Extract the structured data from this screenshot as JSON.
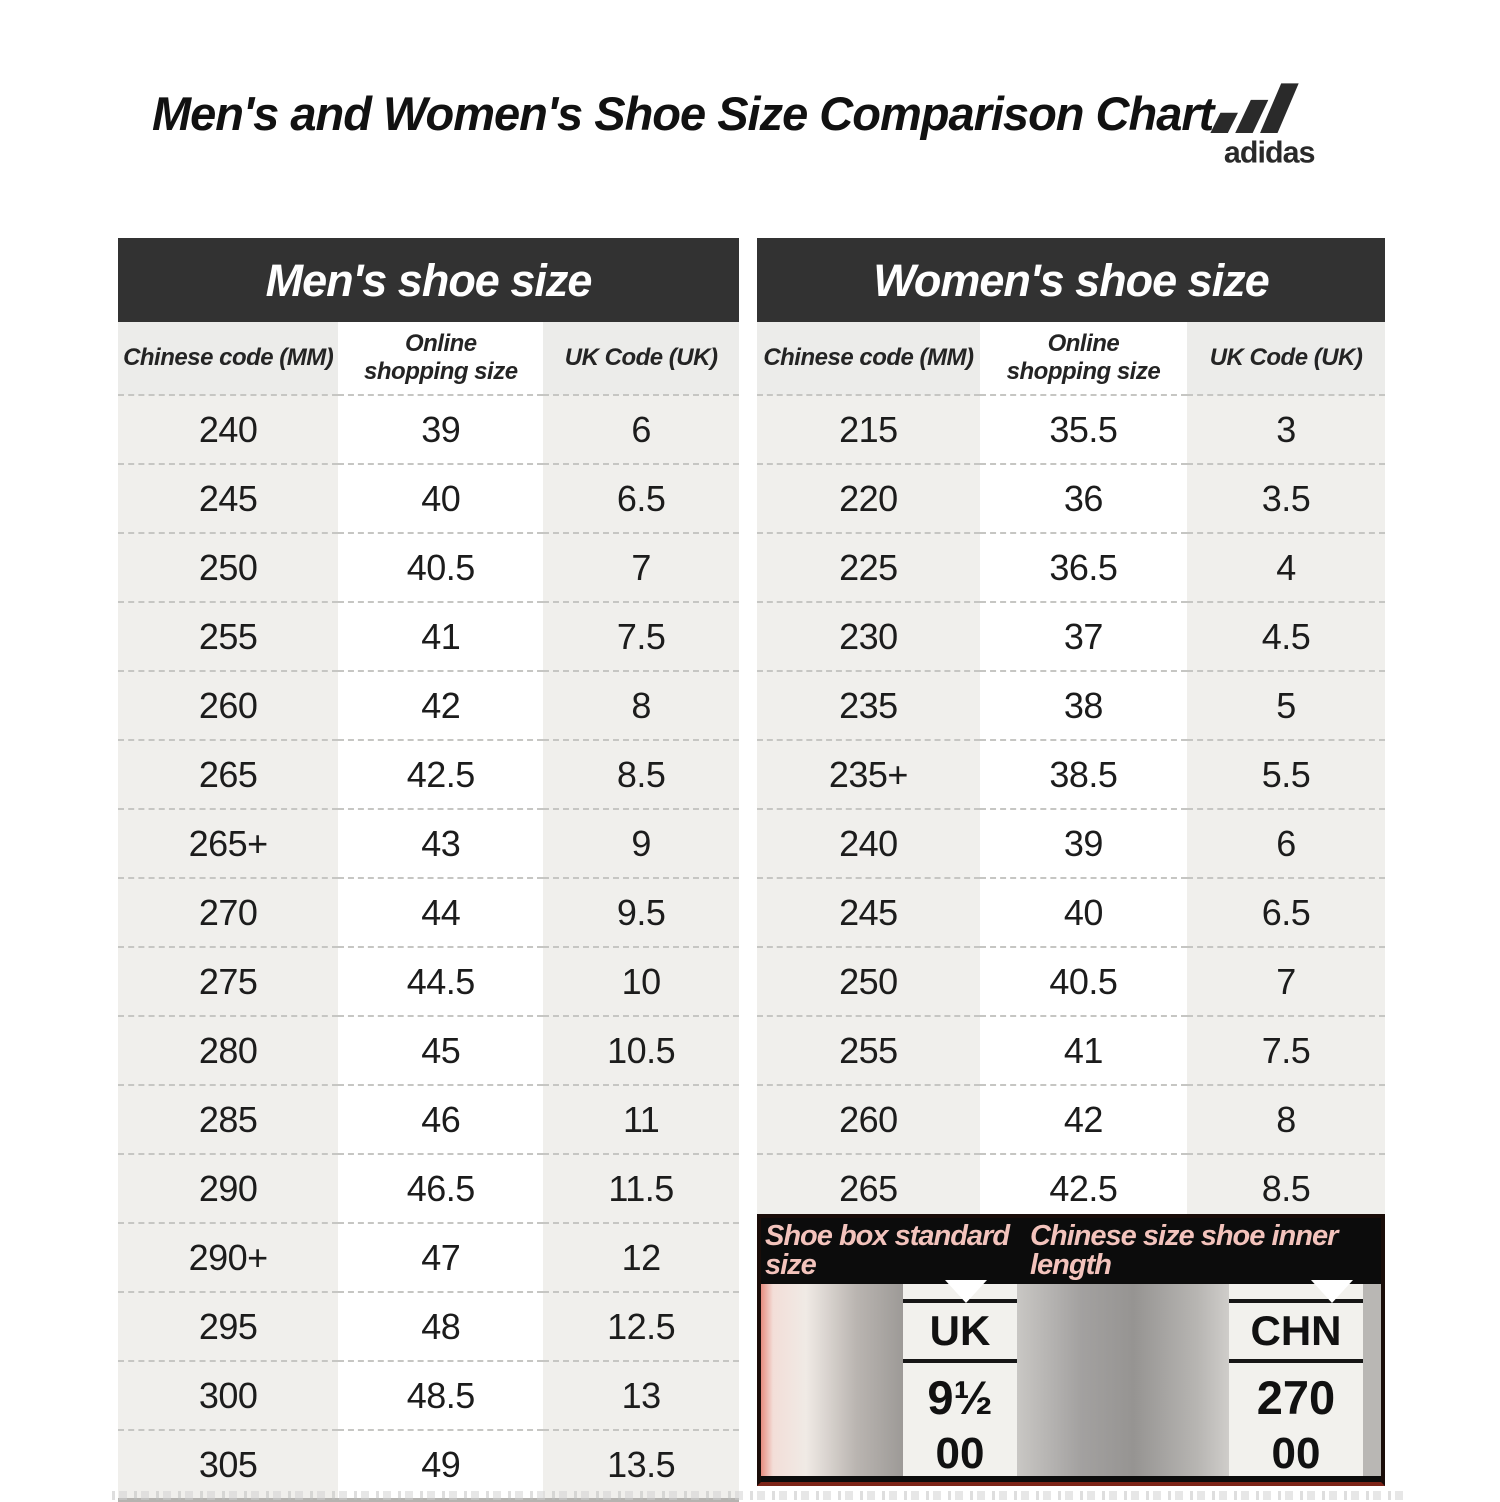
{
  "title": "Men's and Women's Shoe Size Comparison Chart",
  "brand": {
    "name": "adidas"
  },
  "tables": [
    {
      "title": "Men's shoe size",
      "columns": [
        "Chinese code (MM)",
        "Online\nshopping size",
        "UK Code (UK)"
      ],
      "rows": [
        [
          "240",
          "39",
          "6"
        ],
        [
          "245",
          "40",
          "6.5"
        ],
        [
          "250",
          "40.5",
          "7"
        ],
        [
          "255",
          "41",
          "7.5"
        ],
        [
          "260",
          "42",
          "8"
        ],
        [
          "265",
          "42.5",
          "8.5"
        ],
        [
          "265+",
          "43",
          "9"
        ],
        [
          "270",
          "44",
          "9.5"
        ],
        [
          "275",
          "44.5",
          "10"
        ],
        [
          "280",
          "45",
          "10.5"
        ],
        [
          "285",
          "46",
          "11"
        ],
        [
          "290",
          "46.5",
          "11.5"
        ],
        [
          "290+",
          "47",
          "12"
        ],
        [
          "295",
          "48",
          "12.5"
        ],
        [
          "300",
          "48.5",
          "13"
        ],
        [
          "305",
          "49",
          "13.5"
        ]
      ]
    },
    {
      "title": "Women's shoe size",
      "columns": [
        "Chinese code (MM)",
        "Online\nshopping size",
        "UK Code (UK)"
      ],
      "rows": [
        [
          "215",
          "35.5",
          "3"
        ],
        [
          "220",
          "36",
          "3.5"
        ],
        [
          "225",
          "36.5",
          "4"
        ],
        [
          "230",
          "37",
          "4.5"
        ],
        [
          "235",
          "38",
          "5"
        ],
        [
          "235+",
          "38.5",
          "5.5"
        ],
        [
          "240",
          "39",
          "6"
        ],
        [
          "245",
          "40",
          "6.5"
        ],
        [
          "250",
          "40.5",
          "7"
        ],
        [
          "255",
          "41",
          "7.5"
        ],
        [
          "260",
          "42",
          "8"
        ],
        [
          "265",
          "42.5",
          "8.5"
        ]
      ]
    }
  ],
  "box_panel": {
    "left_label": "Shoe box standard size",
    "right_label": "Chinese size shoe inner length",
    "uk_tag": {
      "code": "UK",
      "size": "9½",
      "partial": "00"
    },
    "chn_tag": {
      "code": "CHN",
      "size": "270",
      "partial": "00"
    }
  },
  "colors": {
    "table_header_bar": "#323232",
    "row_gray": "#f0efec",
    "panel_background": "#0c0c0c",
    "panel_label_pink": "#f3c3bc",
    "panel_border_red": "#7d2418",
    "text": "#1b1b1b"
  }
}
